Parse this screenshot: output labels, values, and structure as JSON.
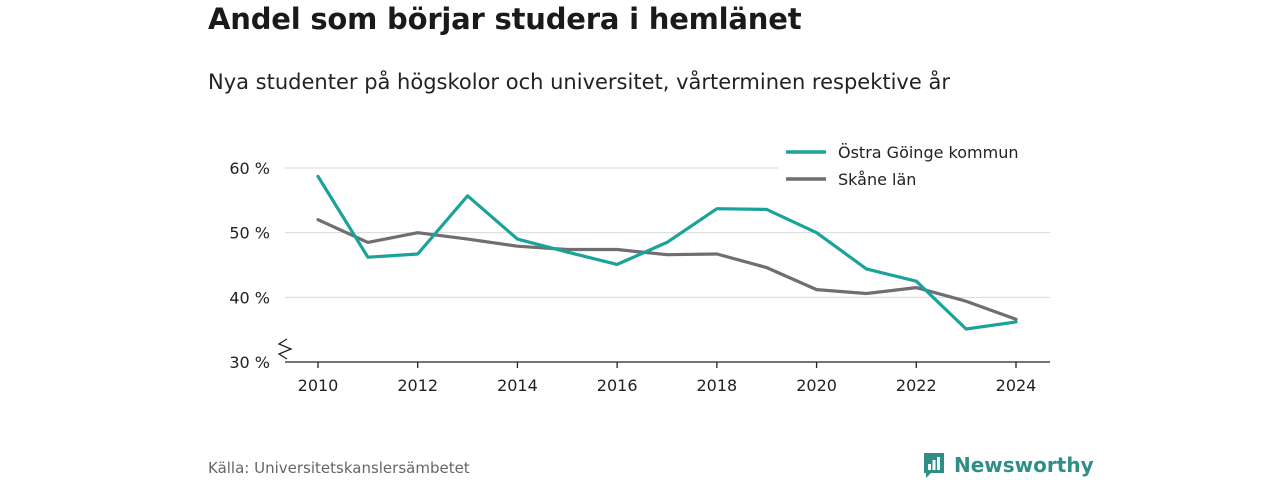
{
  "header": {
    "title": "Andel som börjar studera i hemlänet",
    "subtitle": "Nya studenter på högskolor och universitet, vårterminen respektive år"
  },
  "footer": {
    "source": "Källa: Universitetskanslersämbetet",
    "brand": "Newsworthy",
    "brand_icon": "newsworthy-logo-icon",
    "brand_color": "#2f8f86"
  },
  "chart_data": {
    "type": "line",
    "title": "Andel som börjar studera i hemlänet",
    "subtitle": "Nya studenter på högskolor och universitet, vårterminen respektive år",
    "x": [
      2010,
      2011,
      2012,
      2013,
      2014,
      2015,
      2016,
      2017,
      2018,
      2019,
      2020,
      2021,
      2022,
      2023,
      2024
    ],
    "x_ticks": [
      "2010",
      "2012",
      "2014",
      "2016",
      "2018",
      "2020",
      "2022",
      "2024"
    ],
    "y_ticks": [
      "30 %",
      "40 %",
      "50 %",
      "60 %"
    ],
    "ylim": [
      30,
      60
    ],
    "y_axis_break": true,
    "grid": "horizontal",
    "legend_position": "top-right",
    "series": [
      {
        "name": "Östra Göinge kommun",
        "color": "#1aa39a",
        "values": [
          58.7,
          46.2,
          46.7,
          55.7,
          49.0,
          47.0,
          45.1,
          48.5,
          53.7,
          53.6,
          50.0,
          44.4,
          42.5,
          35.1,
          36.2
        ]
      },
      {
        "name": "Skåne län",
        "color": "#6e6e73",
        "values": [
          52.0,
          48.5,
          50.0,
          49.0,
          47.9,
          47.4,
          47.4,
          46.6,
          46.7,
          44.6,
          41.2,
          40.6,
          41.5,
          39.4,
          36.6
        ]
      }
    ]
  }
}
